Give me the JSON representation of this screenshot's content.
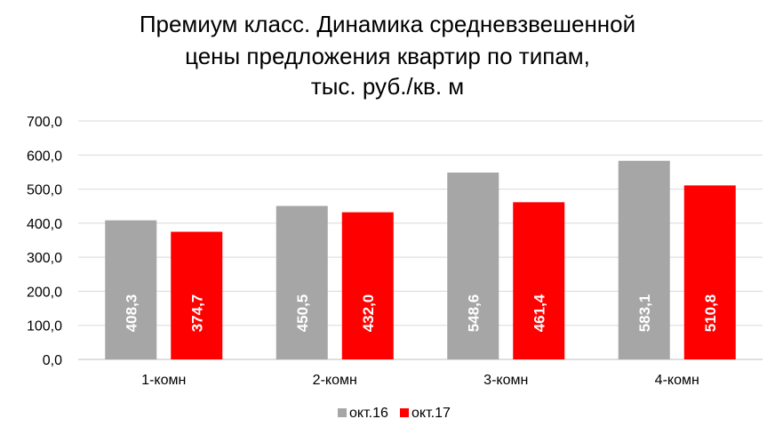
{
  "chart_data": {
    "type": "bar",
    "title_lines": [
      "Премиум класс. Динамика средневзвешенной",
      "цены предложения квартир по типам,",
      "тыс. руб./кв. м"
    ],
    "categories": [
      "1-комн",
      "2-комн",
      "3-комн",
      "4-комн"
    ],
    "series": [
      {
        "name": "окт.16",
        "values": [
          408.3,
          450.5,
          548.6,
          583.1
        ],
        "labels": [
          "408,3",
          "450,5",
          "548,6",
          "583,1"
        ],
        "color": "#a6a6a6"
      },
      {
        "name": "окт.17",
        "values": [
          374.7,
          432.0,
          461.4,
          510.8
        ],
        "labels": [
          "374,7",
          "432,0",
          "461,4",
          "510,8"
        ],
        "color": "#ff0000"
      }
    ],
    "ylim": [
      0,
      700
    ],
    "yticks": [
      "0,0",
      "100,0",
      "200,0",
      "300,0",
      "400,0",
      "500,0",
      "600,0",
      "700,0"
    ],
    "grid": true,
    "legend_position": "bottom"
  }
}
